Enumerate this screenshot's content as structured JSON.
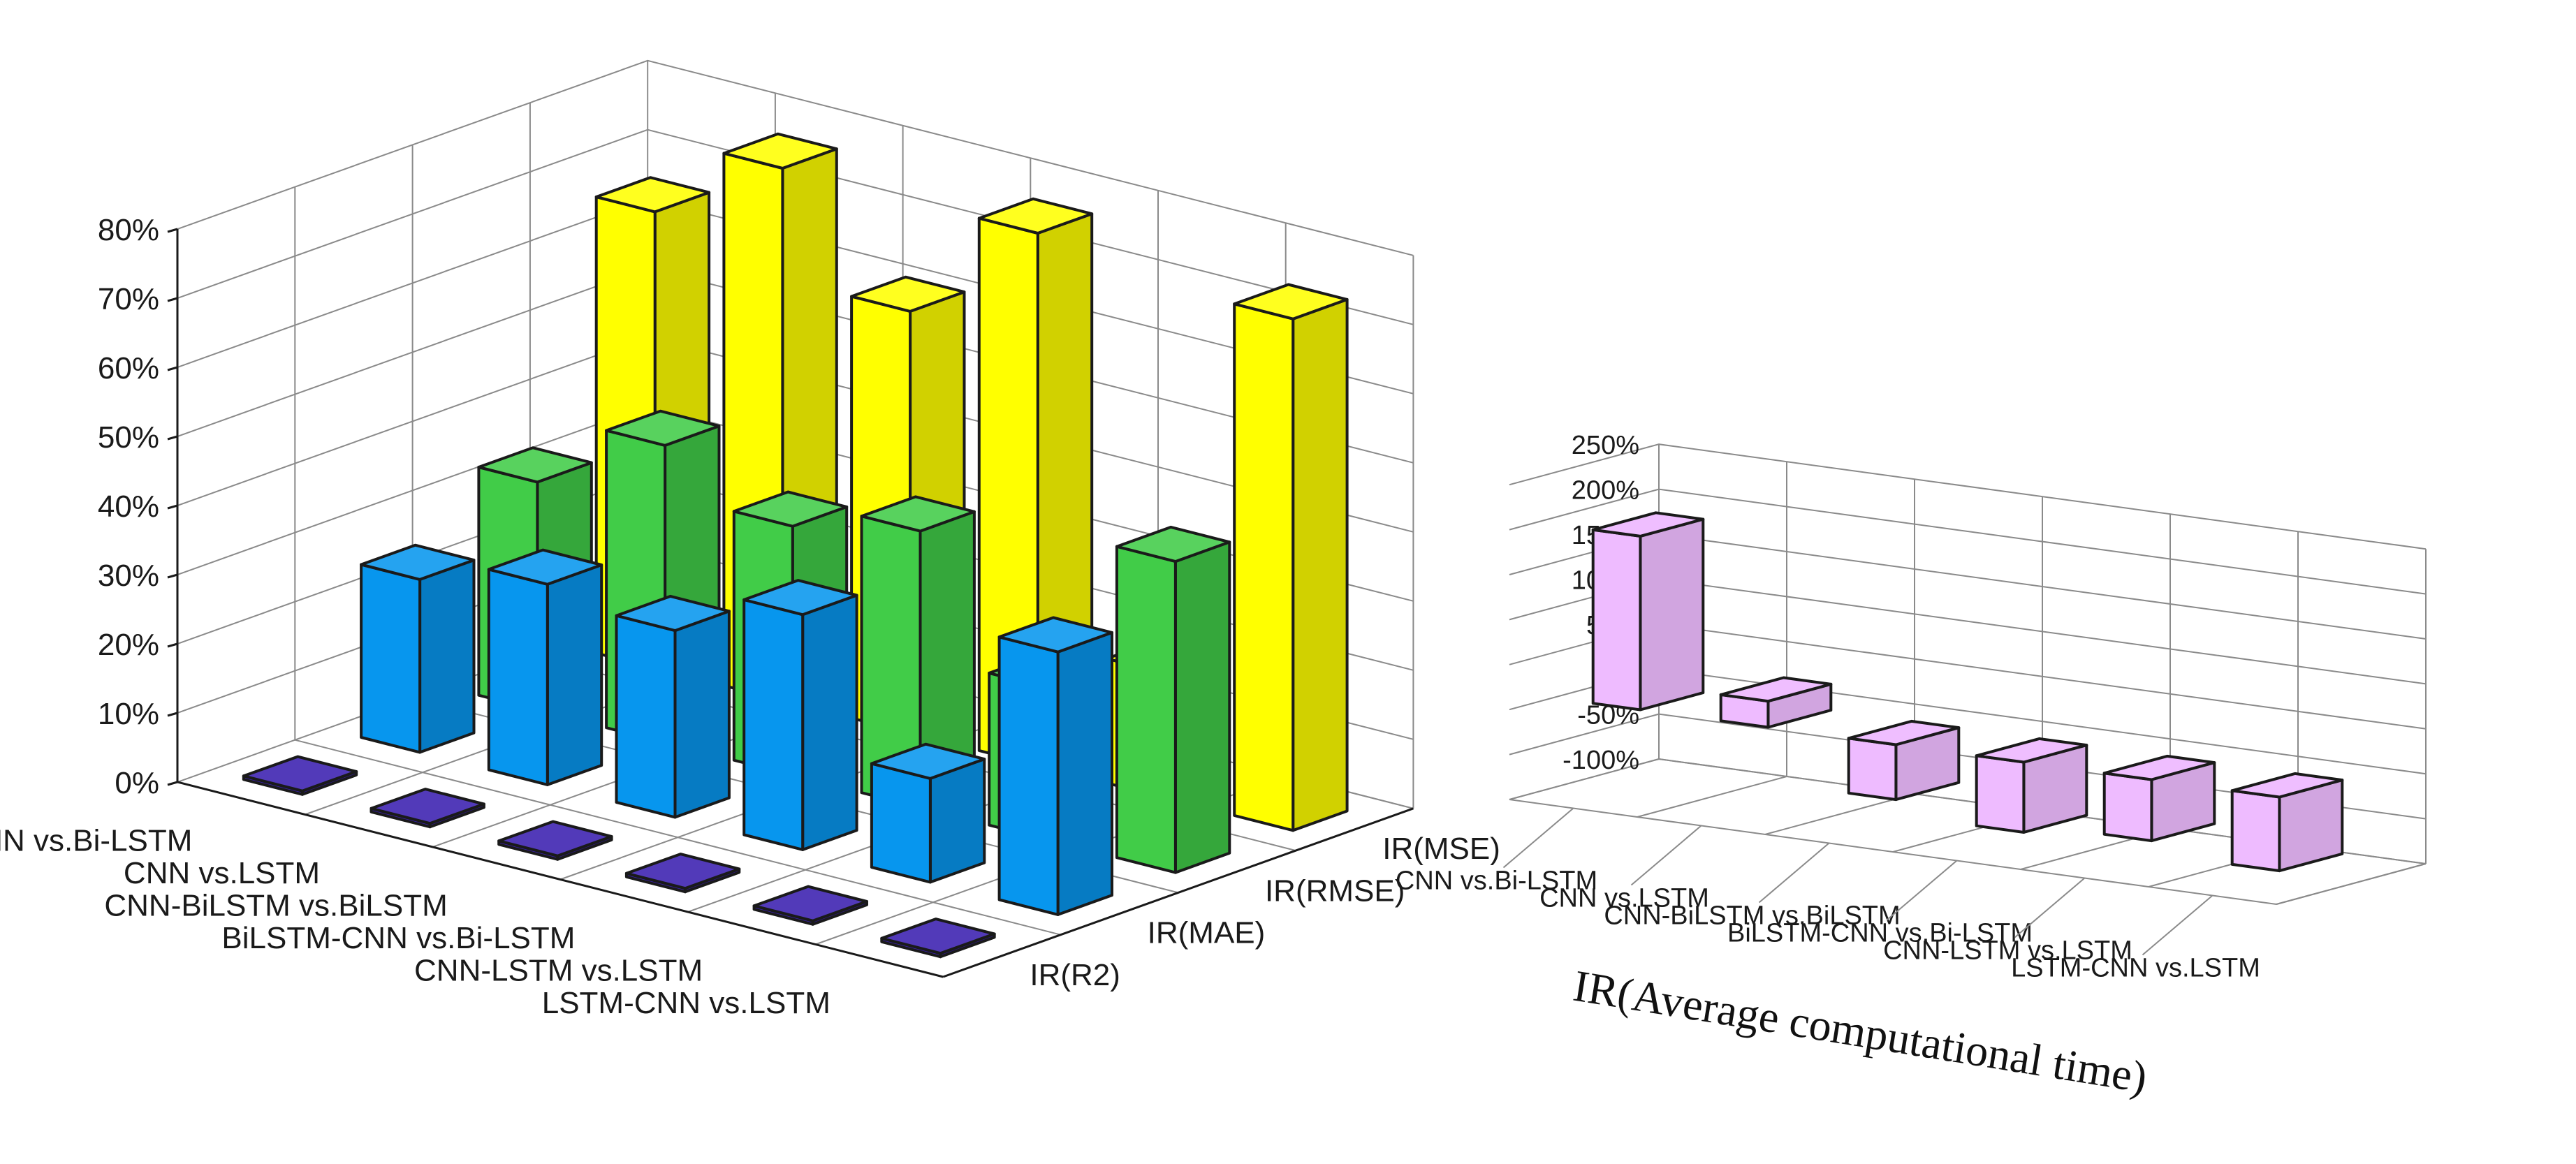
{
  "chart_data": [
    {
      "type": "bar",
      "variant": "3d-bar",
      "title": "",
      "categories": [
        "CNN vs.Bi-LSTM",
        "CNN vs.LSTM",
        "CNN-BiLSTM vs.BiLSTM",
        "BiLSTM-CNN vs.Bi-LSTM",
        "CNN-LSTM vs.LSTM",
        "LSTM-CNN vs.LSTM"
      ],
      "depth_labels": [
        "IR(R2)",
        "IR(MAE)",
        "IR(RMSE)",
        "IR(MSE)"
      ],
      "series": [
        {
          "name": "IR(R2)",
          "color": "#3a1fb0",
          "values": [
            0.5,
            0.5,
            0.5,
            0.5,
            0.5,
            0.5
          ]
        },
        {
          "name": "IR(MAE)",
          "color": "#0796ee",
          "values": [
            25,
            29,
            27,
            34,
            15,
            38
          ]
        },
        {
          "name": "IR(RMSE)",
          "color": "#41cc48",
          "values": [
            33,
            43,
            36,
            40,
            22,
            45
          ]
        },
        {
          "name": "IR(MSE)",
          "color": "#ffff00",
          "values": [
            66,
            77,
            61,
            77,
            18,
            74
          ]
        }
      ],
      "zlim": [
        0,
        80
      ],
      "ztick_labels": [
        "0%",
        "10%",
        "20%",
        "30%",
        "40%",
        "50%",
        "60%",
        "70%",
        "80%"
      ],
      "zlabel": ""
    },
    {
      "type": "bar",
      "variant": "3d-bar",
      "title": "",
      "categories": [
        "CNN vs.Bi-LSTM",
        "CNN vs.LSTM",
        "CNN-BiLSTM vs.BiLSTM",
        "BiLSTM-CNN vs.Bi-LSTM",
        "CNN-LSTM vs.LSTM",
        "LSTM-CNN vs.LSTM"
      ],
      "xlabel": "IR(Average computational time)",
      "series": [
        {
          "name": "IR(Average computational time)",
          "color": "#eebbff",
          "values": [
            193,
            29,
            -61,
            -78,
            -68,
            -82
          ]
        }
      ],
      "zlim": [
        -100,
        250
      ],
      "ztick_labels": [
        "-100%",
        "-50%",
        "0%",
        "50%",
        "100%",
        "150%",
        "200%",
        "250%"
      ]
    }
  ]
}
